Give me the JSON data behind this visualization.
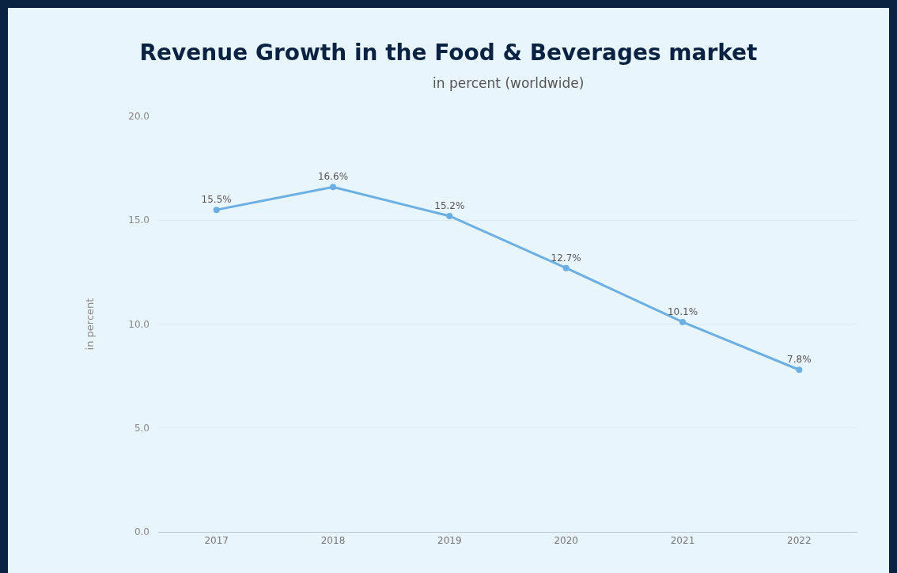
{
  "chart_data": {
    "type": "line",
    "title": "Revenue Growth in the Food & Beverages market",
    "subtitle": "in percent (worldwide)",
    "ylabel": "in percent",
    "categories": [
      "2017",
      "2018",
      "2019",
      "2020",
      "2021",
      "2022"
    ],
    "series": [
      {
        "color": "#6cb0e3",
        "values": [
          15.5,
          16.6,
          15.2,
          12.7,
          10.1,
          7.8
        ],
        "value_labels": [
          "15.5%",
          "16.6%",
          "15.2%",
          "12.7%",
          "10.1%",
          "7.8%"
        ]
      }
    ],
    "ylim": [
      0,
      20
    ],
    "yticks": [
      {
        "value": 0,
        "label": "0.0"
      },
      {
        "value": 5,
        "label": "5.0"
      },
      {
        "value": 10,
        "label": "10.0"
      },
      {
        "value": 15,
        "label": "15.0"
      },
      {
        "value": 20,
        "label": "20.0"
      }
    ],
    "grid": "y",
    "marker": "circle",
    "line_style": "solid"
  }
}
